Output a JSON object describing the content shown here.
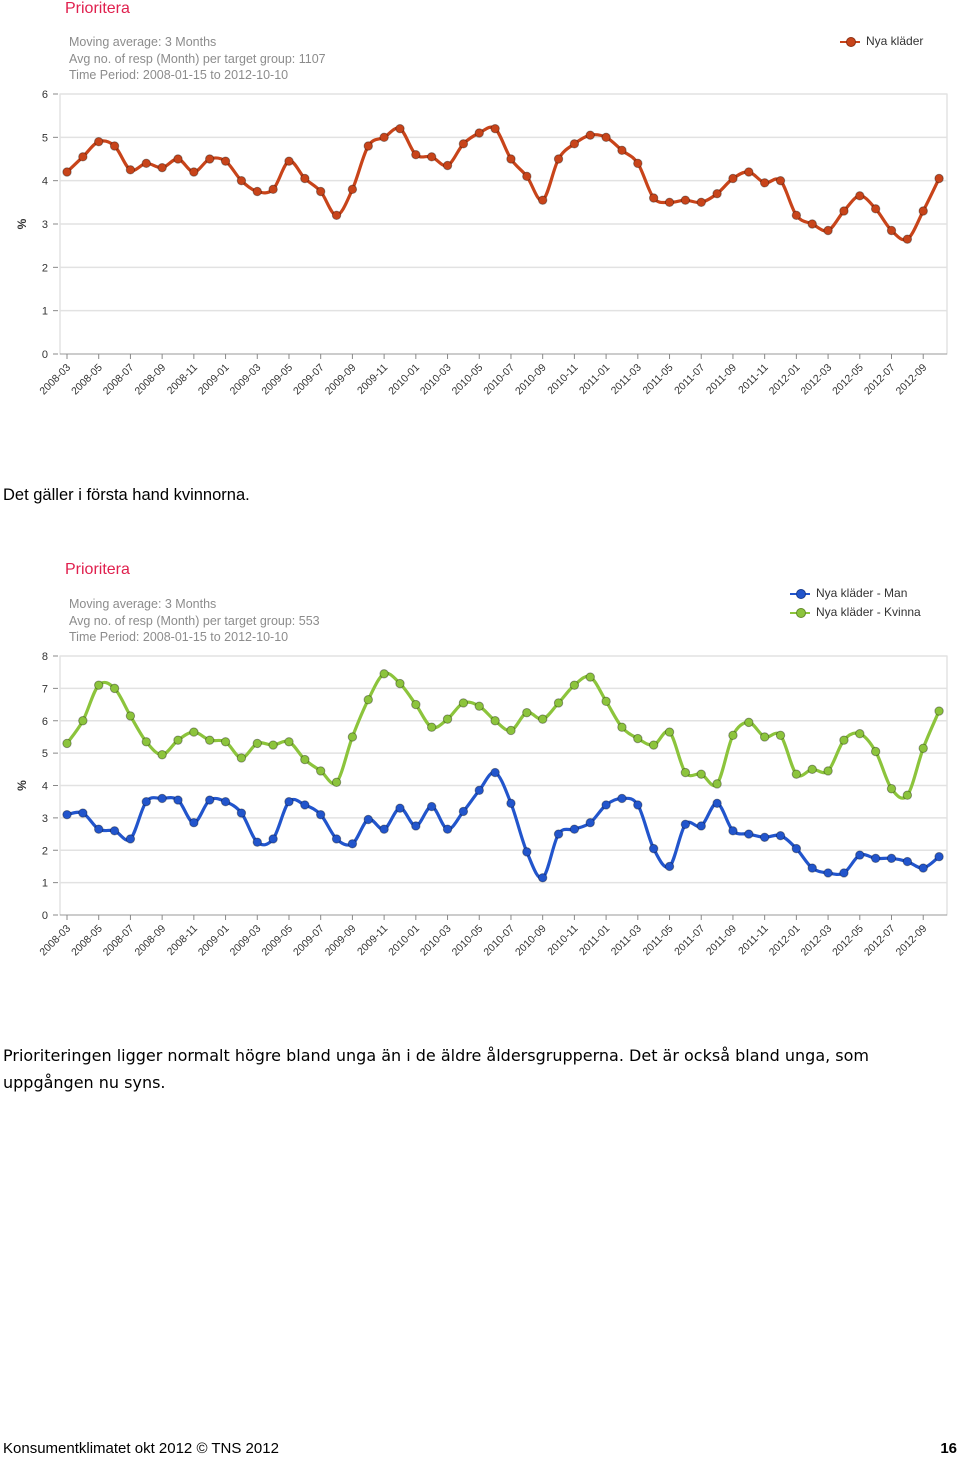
{
  "chart_data": [
    {
      "type": "line",
      "title": "Prioritera",
      "subtitle": [
        "Moving average: 3 Months",
        "Avg no. of resp (Month) per target group: 1107",
        "Time Period: 2008-01-15 to 2012-10-10"
      ],
      "ylabel": "%",
      "xlabel": "",
      "ylim": [
        0,
        6
      ],
      "yticks": [
        "0",
        "1",
        "2",
        "3",
        "4",
        "5",
        "6"
      ],
      "x_tick_labels": [
        "2008-03",
        "2008-05",
        "2008-07",
        "2008-09",
        "2008-11",
        "2009-01",
        "2009-03",
        "2009-05",
        "2009-07",
        "2009-09",
        "2009-11",
        "2010-01",
        "2010-03",
        "2010-05",
        "2010-07",
        "2010-09",
        "2010-11",
        "2011-01",
        "2011-03",
        "2011-05",
        "2011-07",
        "2011-09",
        "2011-11",
        "2012-01",
        "2012-03",
        "2012-05",
        "2012-07",
        "2012-09"
      ],
      "x": [
        "2008-03",
        "2008-04",
        "2008-05",
        "2008-06",
        "2008-07",
        "2008-08",
        "2008-09",
        "2008-10",
        "2008-11",
        "2008-12",
        "2009-01",
        "2009-02",
        "2009-03",
        "2009-04",
        "2009-05",
        "2009-06",
        "2009-07",
        "2009-08",
        "2009-09",
        "2009-10",
        "2009-11",
        "2009-12",
        "2010-01",
        "2010-02",
        "2010-03",
        "2010-04",
        "2010-05",
        "2010-06",
        "2010-07",
        "2010-08",
        "2010-09",
        "2010-10",
        "2010-11",
        "2010-12",
        "2011-01",
        "2011-02",
        "2011-03",
        "2011-04",
        "2011-05",
        "2011-06",
        "2011-07",
        "2011-08",
        "2011-09",
        "2011-10",
        "2011-11",
        "2011-12",
        "2012-01",
        "2012-02",
        "2012-03",
        "2012-04",
        "2012-05",
        "2012-06",
        "2012-07",
        "2012-08",
        "2012-09",
        "2012-10"
      ],
      "grid": true,
      "legend_position": "top-right",
      "series": [
        {
          "name": "Nya kläder",
          "color": "#c8441a",
          "values": [
            4.2,
            4.55,
            4.9,
            4.8,
            4.25,
            4.4,
            4.3,
            4.5,
            4.2,
            4.5,
            4.45,
            4.0,
            3.75,
            3.8,
            4.45,
            4.05,
            3.75,
            3.2,
            3.8,
            4.8,
            5.0,
            5.2,
            4.6,
            4.55,
            4.35,
            4.85,
            5.1,
            5.2,
            4.5,
            4.1,
            3.55,
            4.5,
            4.85,
            5.05,
            5.0,
            4.7,
            4.4,
            3.6,
            3.5,
            3.55,
            3.5,
            3.7,
            4.05,
            4.2,
            3.95,
            4.0,
            3.2,
            3.0,
            2.85,
            3.3,
            3.65,
            3.35,
            2.85,
            2.65,
            3.3,
            4.05
          ]
        }
      ]
    },
    {
      "type": "line",
      "title": "Prioritera",
      "subtitle": [
        "Moving average: 3 Months",
        "Avg no. of resp (Month) per target group: 553",
        "Time Period: 2008-01-15 to 2012-10-10"
      ],
      "ylabel": "%",
      "xlabel": "",
      "ylim": [
        0,
        8
      ],
      "yticks": [
        "0",
        "1",
        "2",
        "3",
        "4",
        "5",
        "6",
        "7",
        "8"
      ],
      "x_tick_labels": [
        "2008-03",
        "2008-05",
        "2008-07",
        "2008-09",
        "2008-11",
        "2009-01",
        "2009-03",
        "2009-05",
        "2009-07",
        "2009-09",
        "2009-11",
        "2010-01",
        "2010-03",
        "2010-05",
        "2010-07",
        "2010-09",
        "2010-11",
        "2011-01",
        "2011-03",
        "2011-05",
        "2011-07",
        "2011-09",
        "2011-11",
        "2012-01",
        "2012-03",
        "2012-05",
        "2012-07",
        "2012-09"
      ],
      "x": [
        "2008-03",
        "2008-04",
        "2008-05",
        "2008-06",
        "2008-07",
        "2008-08",
        "2008-09",
        "2008-10",
        "2008-11",
        "2008-12",
        "2009-01",
        "2009-02",
        "2009-03",
        "2009-04",
        "2009-05",
        "2009-06",
        "2009-07",
        "2009-08",
        "2009-09",
        "2009-10",
        "2009-11",
        "2009-12",
        "2010-01",
        "2010-02",
        "2010-03",
        "2010-04",
        "2010-05",
        "2010-06",
        "2010-07",
        "2010-08",
        "2010-09",
        "2010-10",
        "2010-11",
        "2010-12",
        "2011-01",
        "2011-02",
        "2011-03",
        "2011-04",
        "2011-05",
        "2011-06",
        "2011-07",
        "2011-08",
        "2011-09",
        "2011-10",
        "2011-11",
        "2011-12",
        "2012-01",
        "2012-02",
        "2012-03",
        "2012-04",
        "2012-05",
        "2012-06",
        "2012-07",
        "2012-08",
        "2012-09",
        "2012-10"
      ],
      "grid": true,
      "legend_position": "top-right",
      "series": [
        {
          "name": "Nya kläder - Man",
          "color": "#2255cc",
          "values": [
            3.1,
            3.15,
            2.65,
            2.6,
            2.35,
            3.5,
            3.6,
            3.55,
            2.85,
            3.55,
            3.5,
            3.15,
            2.25,
            2.35,
            3.5,
            3.4,
            3.1,
            2.35,
            2.2,
            2.95,
            2.65,
            3.3,
            2.75,
            3.35,
            2.65,
            3.2,
            3.85,
            4.4,
            3.45,
            1.95,
            1.15,
            2.5,
            2.65,
            2.85,
            3.4,
            3.6,
            3.4,
            2.05,
            1.5,
            2.8,
            2.75,
            3.45,
            2.6,
            2.5,
            2.4,
            2.45,
            2.05,
            1.45,
            1.3,
            1.3,
            1.85,
            1.75,
            1.75,
            1.65,
            1.45,
            1.8
          ]
        },
        {
          "name": "Nya kläder - Kvinna",
          "color": "#8cc43c",
          "values": [
            5.3,
            6.0,
            7.1,
            7.0,
            6.15,
            5.35,
            4.95,
            5.4,
            5.65,
            5.4,
            5.35,
            4.85,
            5.3,
            5.25,
            5.35,
            4.8,
            4.45,
            4.1,
            5.5,
            6.65,
            7.45,
            7.15,
            6.5,
            5.8,
            6.05,
            6.55,
            6.45,
            6.0,
            5.7,
            6.25,
            6.05,
            6.55,
            7.1,
            7.35,
            6.6,
            5.8,
            5.45,
            5.25,
            5.65,
            4.4,
            4.35,
            4.05,
            5.55,
            5.95,
            5.5,
            5.55,
            4.35,
            4.5,
            4.45,
            5.4,
            5.6,
            5.05,
            3.9,
            3.7,
            5.15,
            6.3
          ]
        }
      ]
    }
  ],
  "text": {
    "para1": "Det gäller i första hand kvinnorna.",
    "para2": "Prioriteringen ligger normalt högre bland unga än i de äldre åldersgrupperna. Det är också bland unga, som uppgången nu syns."
  },
  "footer": {
    "left": "Konsumentklimatet okt 2012  © TNS 2012",
    "page": "16"
  }
}
